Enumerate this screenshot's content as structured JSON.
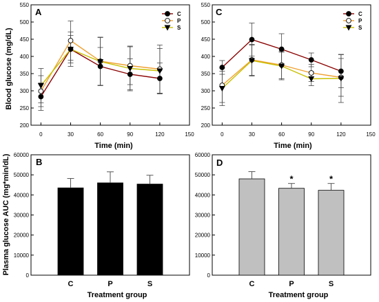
{
  "colors": {
    "C": "#8b0000",
    "P": "#f0a030",
    "S": "#c8c000",
    "bar_black": "#000000",
    "bar_grey": "#c0c0c0"
  },
  "chart_data": [
    {
      "panel": "A",
      "type": "line",
      "xlabel": "Time (min)",
      "ylabel": "Blood glucose (mg/dL)",
      "x": [
        0,
        30,
        60,
        90,
        120
      ],
      "xlim": [
        -10,
        150
      ],
      "ylim": [
        200,
        550
      ],
      "xticks": [
        0,
        30,
        60,
        90,
        120,
        150
      ],
      "yticks": [
        200,
        250,
        300,
        350,
        400,
        450,
        500,
        550
      ],
      "legend_position": "top-right",
      "series": [
        {
          "name": "C",
          "marker": "filled-circle",
          "values": [
            283,
            421,
            371,
            348,
            336
          ],
          "errors": [
            40,
            40,
            55,
            45,
            45
          ]
        },
        {
          "name": "P",
          "marker": "open-circle",
          "values": [
            299,
            446,
            386,
            373,
            363
          ],
          "errors": [
            45,
            57,
            70,
            55,
            70
          ]
        },
        {
          "name": "S",
          "marker": "filled-triangle",
          "values": [
            315,
            421,
            385,
            365,
            358
          ],
          "errors": [
            50,
            50,
            70,
            65,
            65
          ]
        }
      ]
    },
    {
      "panel": "C",
      "type": "line",
      "xlabel": "Time (min)",
      "ylabel": "",
      "x": [
        0,
        30,
        60,
        90,
        120
      ],
      "xlim": [
        -10,
        150
      ],
      "ylim": [
        200,
        550
      ],
      "xticks": [
        0,
        30,
        60,
        90,
        120,
        150
      ],
      "yticks": [
        200,
        250,
        300,
        350,
        400,
        450,
        500,
        550
      ],
      "legend_position": "top-right",
      "series": [
        {
          "name": "C",
          "marker": "filled-circle",
          "values": [
            368,
            449,
            421,
            390,
            357
          ],
          "errors": [
            20,
            48,
            45,
            20,
            48
          ]
        },
        {
          "name": "P",
          "marker": "open-circle",
          "values": [
            316,
            390,
            375,
            352,
            339
          ],
          "errors": [
            50,
            45,
            40,
            25,
            55
          ]
        },
        {
          "name": "S",
          "marker": "filled-triangle",
          "values": [
            307,
            388,
            372,
            335,
            336
          ],
          "errors": [
            50,
            45,
            40,
            20,
            70
          ]
        }
      ]
    },
    {
      "panel": "B",
      "type": "bar",
      "xlabel": "Treatment group",
      "ylabel": "Plasma glucose AUC (mg*min/dL)",
      "categories": [
        "C",
        "P",
        "S"
      ],
      "values": [
        43500,
        46000,
        45400
      ],
      "errors": [
        4700,
        5500,
        4400
      ],
      "ylim": [
        0,
        60000
      ],
      "yticks": [
        0,
        10000,
        20000,
        30000,
        40000,
        50000,
        60000
      ],
      "bar_color": "black",
      "annotations": [
        "",
        "",
        ""
      ]
    },
    {
      "panel": "D",
      "type": "bar",
      "xlabel": "Treatment group",
      "ylabel": "",
      "categories": [
        "C",
        "P",
        "S"
      ],
      "values": [
        48000,
        43300,
        42300
      ],
      "errors": [
        3600,
        2400,
        3400
      ],
      "ylim": [
        0,
        60000
      ],
      "yticks": [
        0,
        10000,
        20000,
        30000,
        40000,
        50000,
        60000
      ],
      "bar_color": "grey",
      "annotations": [
        "",
        "*",
        "*"
      ]
    }
  ]
}
